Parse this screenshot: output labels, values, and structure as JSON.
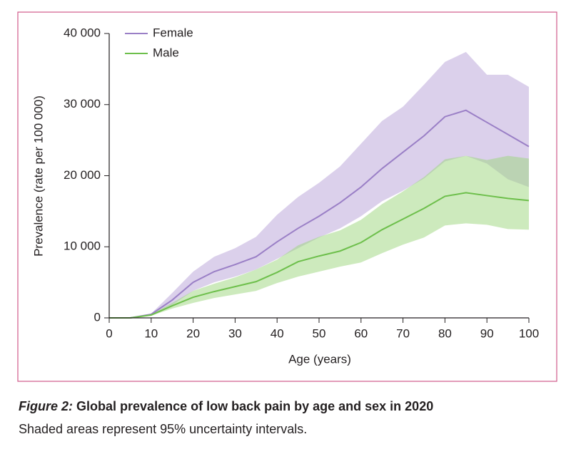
{
  "chart_data": {
    "type": "line_band",
    "x_label": "Age (years)",
    "y_label": "Prevalence (rate per 100 000)",
    "caption_label": "Figure 2:",
    "caption": "Global prevalence of low back pain by age and sex in 2020",
    "subtitle": "Shaded areas represent 95% uncertainty intervals.",
    "x": [
      0,
      5,
      10,
      15,
      20,
      25,
      30,
      35,
      40,
      45,
      50,
      55,
      60,
      65,
      70,
      75,
      80,
      85,
      90,
      95,
      100
    ],
    "xlim": [
      0,
      100
    ],
    "xticks": [
      0,
      10,
      20,
      30,
      40,
      50,
      60,
      70,
      80,
      90,
      100
    ],
    "ylim": [
      0,
      40000
    ],
    "yticks": [
      0,
      {
        "value": 10000,
        "label": "10 000"
      },
      {
        "value": 20000,
        "label": "20 000"
      },
      {
        "value": 30000,
        "label": "30 000"
      },
      {
        "value": 40000,
        "label": "40 000"
      }
    ],
    "legend": "top-left",
    "series": [
      {
        "name": "Female",
        "color": "#9a7fc6",
        "band_color": "#b8a2d8",
        "values": [
          0,
          0,
          500,
          2500,
          5000,
          6500,
          7500,
          8600,
          10700,
          12600,
          14300,
          16200,
          18400,
          21000,
          23300,
          25600,
          28300,
          29200,
          27500,
          25800,
          24100
        ],
        "upper": [
          0,
          0,
          600,
          3500,
          6500,
          8600,
          9800,
          11400,
          14500,
          17000,
          19000,
          21300,
          24500,
          27700,
          29700,
          32800,
          36000,
          37400,
          34200,
          34200,
          32500
        ],
        "lower": [
          0,
          0,
          400,
          1800,
          3800,
          5000,
          5800,
          6800,
          8300,
          9800,
          11300,
          12600,
          14300,
          16400,
          17900,
          19600,
          22000,
          22800,
          21700,
          19500,
          18400
        ]
      },
      {
        "name": "Male",
        "color": "#6dbf4b",
        "band_color": "#9cd67c",
        "values": [
          0,
          0,
          400,
          1700,
          2900,
          3700,
          4400,
          5100,
          6400,
          7900,
          8700,
          9400,
          10600,
          12400,
          13900,
          15400,
          17100,
          17600,
          17200,
          16800,
          16500
        ],
        "upper": [
          0,
          0,
          500,
          2100,
          3800,
          4800,
          5700,
          6800,
          8200,
          10200,
          11400,
          12300,
          13800,
          16000,
          17800,
          19800,
          22300,
          22800,
          22200,
          22800,
          22400
        ],
        "lower": [
          0,
          0,
          300,
          1300,
          2100,
          2800,
          3300,
          3800,
          4900,
          5800,
          6500,
          7200,
          7800,
          9100,
          10300,
          11300,
          13000,
          13300,
          13100,
          12500,
          12400
        ]
      }
    ]
  }
}
